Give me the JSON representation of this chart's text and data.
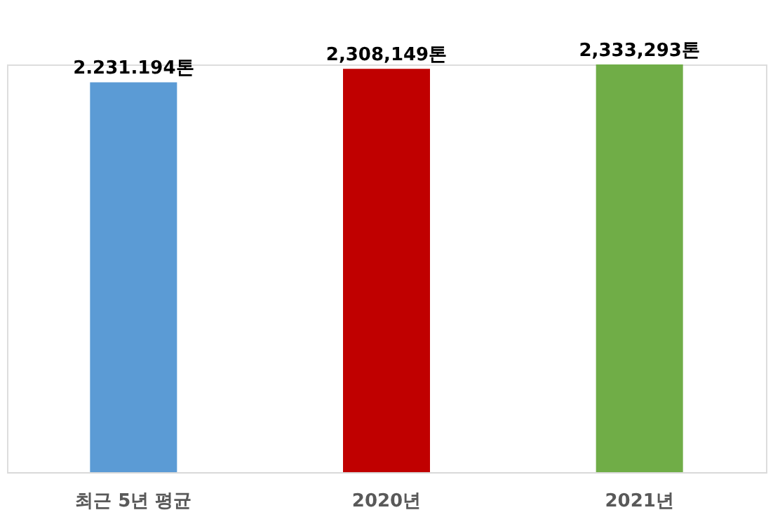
{
  "chart_data": {
    "type": "bar",
    "categories": [
      "최근 5년 평균",
      "2020년",
      "2021년"
    ],
    "values": [
      2231194,
      2308149,
      2333293
    ],
    "colors": [
      "#5b9bd5",
      "#c00000",
      "#70ad47"
    ],
    "value_labels": [
      "2.231.194톤",
      "2,308,149톤",
      "2,333,293톤"
    ],
    "grid": false
  }
}
